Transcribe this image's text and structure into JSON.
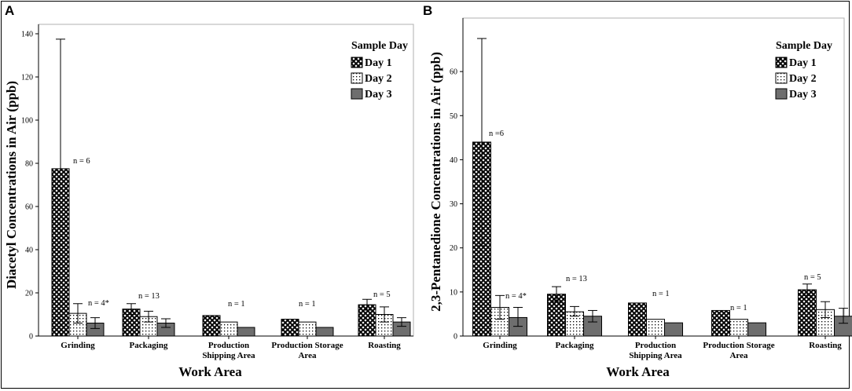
{
  "chart_data": [
    {
      "type": "bar",
      "panel_label": "A",
      "ylabel": "Diacetyl Concentrations in Air (ppb)",
      "xlabel": "Work Area",
      "ylim": [
        0,
        140
      ],
      "yticks": [
        0,
        20,
        40,
        60,
        80,
        100,
        120,
        140
      ],
      "categories": [
        "Grinding",
        "Packaging",
        "Production Shipping Area",
        "Production Storage Area",
        "Roasting"
      ],
      "legend_title": "Sample Day",
      "series": [
        {
          "name": "Day 1",
          "values": [
            77.5,
            12.5,
            9.5,
            7.8,
            14.5
          ],
          "err_high": [
            137.5,
            15,
            null,
            null,
            17
          ],
          "err_low": [
            null,
            10,
            null,
            null,
            12
          ]
        },
        {
          "name": "Day 2",
          "values": [
            10.5,
            9,
            6.5,
            6.5,
            10
          ],
          "err_high": [
            15,
            11.5,
            null,
            null,
            13.5
          ],
          "err_low": [
            6,
            6.5,
            null,
            null,
            6.5
          ]
        },
        {
          "name": "Day 3",
          "values": [
            6,
            6,
            4,
            4,
            6.5
          ],
          "err_high": [
            8.5,
            8,
            null,
            null,
            8.5
          ],
          "err_low": [
            3.5,
            4,
            null,
            null,
            4.5
          ]
        }
      ],
      "annotations": [
        {
          "category": "Grinding",
          "text": "n = 6"
        },
        {
          "category": "Grinding",
          "text": "n = 4*"
        },
        {
          "category": "Packaging",
          "text": "n = 13"
        },
        {
          "category": "Production Shipping Area",
          "text": "n = 1"
        },
        {
          "category": "Production Storage Area",
          "text": "n = 1"
        },
        {
          "category": "Roasting",
          "text": "n = 5"
        }
      ]
    },
    {
      "type": "bar",
      "panel_label": "B",
      "ylabel": "2,3-Pentanedione Concentrations in Air (ppb)",
      "xlabel": "Work Area",
      "ylim": [
        0,
        70
      ],
      "yticks": [
        0,
        10,
        20,
        30,
        40,
        50,
        60
      ],
      "categories": [
        "Grinding",
        "Packaging",
        "Production Shipping Area",
        "Production Storage Area",
        "Roasting"
      ],
      "legend_title": "Sample Day",
      "series": [
        {
          "name": "Day 1",
          "values": [
            44,
            9.5,
            7.5,
            5.8,
            10.5
          ],
          "err_high": [
            67.5,
            11.2,
            null,
            null,
            11.8
          ],
          "err_low": [
            20.5,
            7.8,
            null,
            null,
            9.2
          ]
        },
        {
          "name": "Day 2",
          "values": [
            6.5,
            5.5,
            3.8,
            3.8,
            6
          ],
          "err_high": [
            9.2,
            6.7,
            null,
            null,
            7.8
          ],
          "err_low": [
            3.8,
            4.5,
            null,
            null,
            4.2
          ]
        },
        {
          "name": "Day 3",
          "values": [
            4.2,
            4.5,
            3,
            3,
            4.5
          ],
          "err_high": [
            6.5,
            5.8,
            null,
            null,
            6.3
          ],
          "err_low": [
            2.2,
            3.2,
            null,
            null,
            2.9
          ]
        }
      ],
      "annotations": [
        {
          "category": "Grinding",
          "text": "n =6"
        },
        {
          "category": "Grinding",
          "text": "n = 4*"
        },
        {
          "category": "Packaging",
          "text": "n = 13"
        },
        {
          "category": "Production Shipping Area",
          "text": "n = 1"
        },
        {
          "category": "Production Storage Area",
          "text": "n = 1"
        },
        {
          "category": "Roasting",
          "text": "n = 5"
        }
      ]
    }
  ],
  "colors": {
    "bar_fill": "#ffffff",
    "day3_fill": "#6e6e6e",
    "ink": "#000000",
    "frame": "#b0b0b0"
  }
}
